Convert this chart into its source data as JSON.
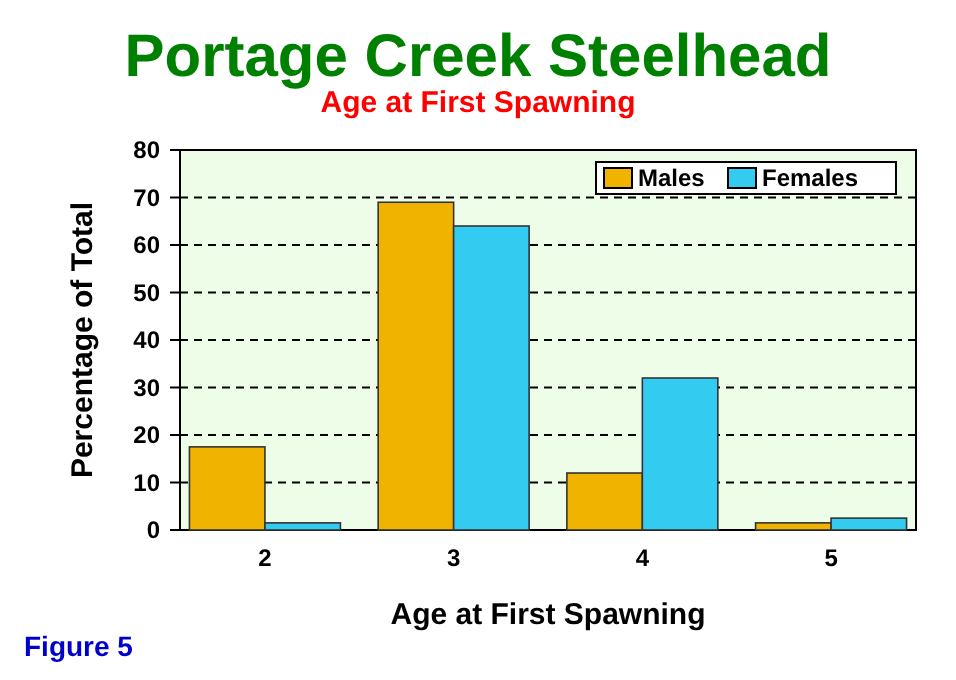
{
  "chart_data": {
    "type": "bar",
    "title": "Portage Creek Steelhead",
    "subtitle": "Age at First Spawning",
    "xlabel": "Age at First Spawning",
    "ylabel": "Percentage of Total",
    "categories": [
      "2",
      "3",
      "4",
      "5"
    ],
    "series": [
      {
        "name": "Males",
        "color": "#f0b400",
        "values": [
          17.5,
          69,
          12,
          1.5
        ]
      },
      {
        "name": "Females",
        "color": "#33ccf0",
        "values": [
          1.5,
          64,
          32,
          2.5
        ]
      }
    ],
    "ylim": [
      0,
      80
    ],
    "yticks": [
      0,
      10,
      20,
      30,
      40,
      50,
      60,
      70,
      80
    ],
    "grid": "y",
    "legend": "top right",
    "annotations": [
      "Figure 5"
    ]
  }
}
